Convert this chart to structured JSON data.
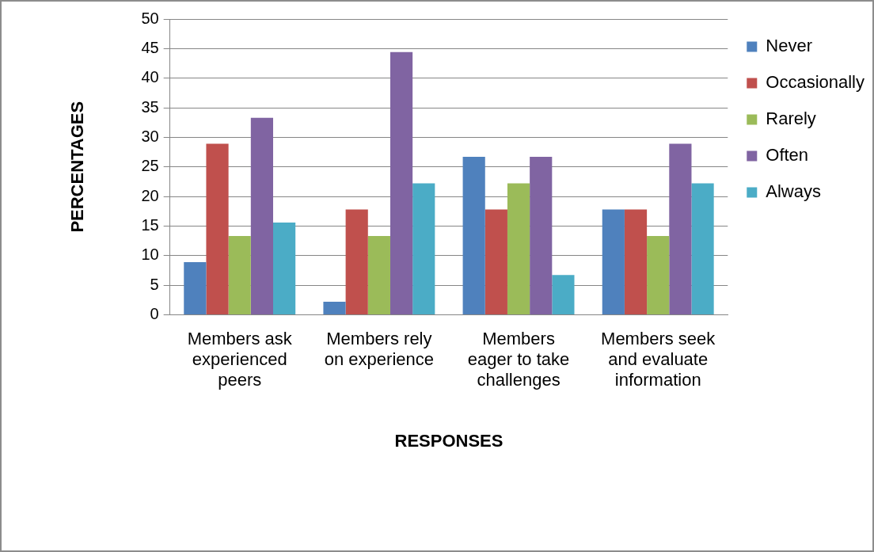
{
  "chart_data": {
    "type": "bar",
    "xlabel": "RESPONSES",
    "ylabel": "PERCENTAGES",
    "categories": [
      "Members ask experienced peers",
      "Members rely on experience",
      "Members eager to take challenges",
      "Members seek and evaluate information"
    ],
    "series": [
      {
        "name": "Never",
        "color": "#4f81bd",
        "values": [
          8.9,
          2.2,
          26.7,
          17.8
        ]
      },
      {
        "name": "Occasionally",
        "color": "#c0504d",
        "values": [
          28.9,
          17.8,
          17.8,
          17.8
        ]
      },
      {
        "name": "Rarely",
        "color": "#9bbb59",
        "values": [
          13.3,
          13.3,
          22.2,
          13.3
        ]
      },
      {
        "name": "Often",
        "color": "#8064a2",
        "values": [
          33.3,
          44.4,
          26.7,
          28.9
        ]
      },
      {
        "name": "Always",
        "color": "#4bacc6",
        "values": [
          15.6,
          22.2,
          6.7,
          22.2
        ]
      }
    ],
    "ylim": [
      0,
      50
    ],
    "yticks": [
      0,
      5,
      10,
      15,
      20,
      25,
      30,
      35,
      40,
      45,
      50
    ],
    "grid": "y",
    "legend": "right"
  }
}
